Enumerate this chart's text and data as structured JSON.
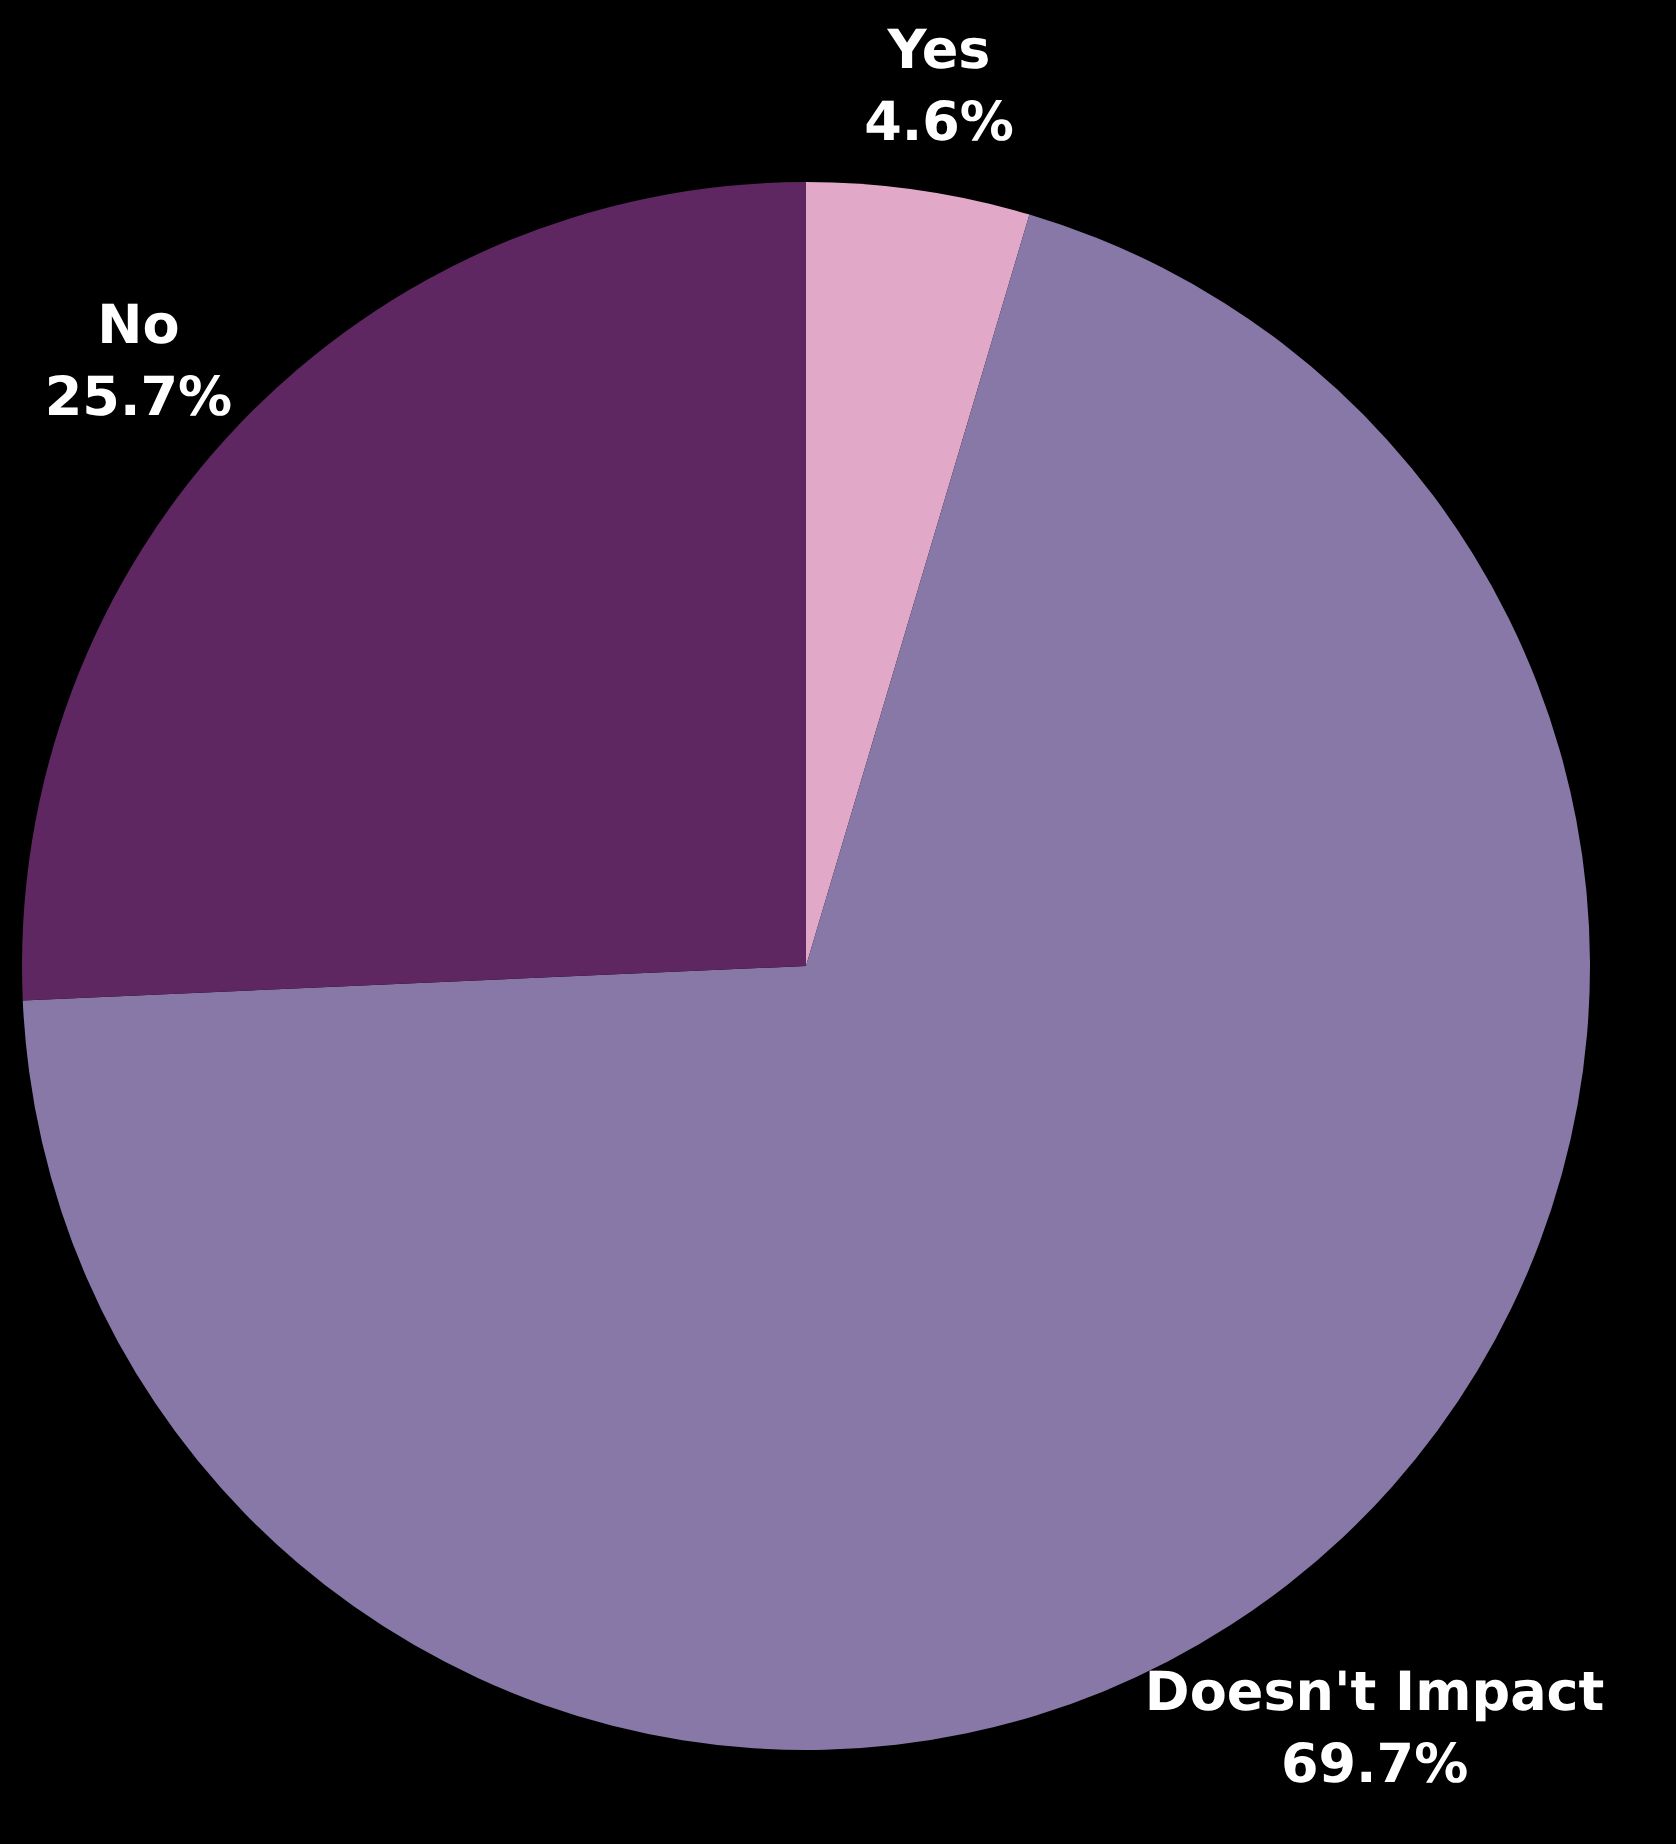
{
  "chart_data": {
    "type": "pie",
    "categories": [
      "Yes",
      "Doesn't Impact",
      "No"
    ],
    "values": [
      4.6,
      69.7,
      25.7
    ],
    "colors": [
      "#e1a8c7",
      "#8878a8",
      "#5e2762"
    ],
    "value_labels": [
      "4.6%",
      "69.7%",
      "25.7%"
    ]
  }
}
